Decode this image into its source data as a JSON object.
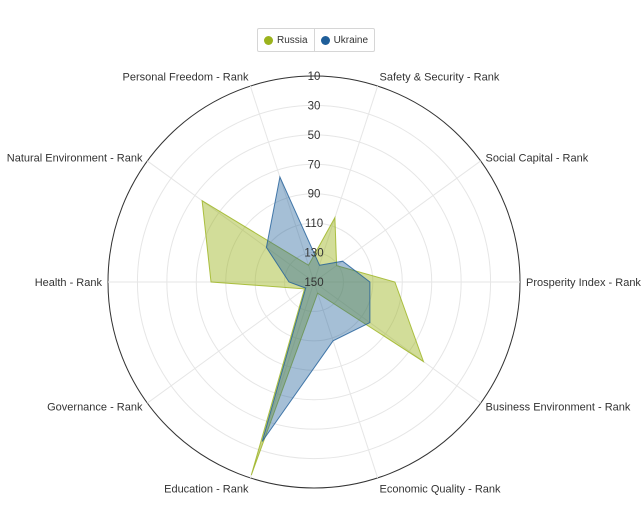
{
  "chart_data": {
    "type": "radar",
    "axes": [
      "Safety & Security - Rank",
      "Social Capital - Rank",
      "Prosperity Index - Rank",
      "Business Environment - Rank",
      "Economic Quality - Rank",
      "Education - Rank",
      "Governance - Rank",
      "Health - Rank",
      "Natural Environment - Rank",
      "Personal Freedom - Rank"
    ],
    "radial_ticks": [
      "10",
      "30",
      "50",
      "70",
      "90",
      "110",
      "130",
      "150"
    ],
    "radial_range": [
      150,
      10
    ],
    "radial_reversed": true,
    "series": [
      {
        "name": "Russia",
        "color": "#9bb31d",
        "fill_opacity": 0.45,
        "values": [
          104,
          131,
          95,
          58,
          142,
          12,
          142,
          80,
          56,
          138
        ]
      },
      {
        "name": "Ukraine",
        "color": "#1f5e99",
        "fill_opacity": 0.4,
        "values": [
          138,
          126,
          112,
          103,
          108,
          36,
          143,
          133,
          110,
          75
        ]
      }
    ],
    "legend": {
      "position": "top-center"
    },
    "grid": true
  }
}
